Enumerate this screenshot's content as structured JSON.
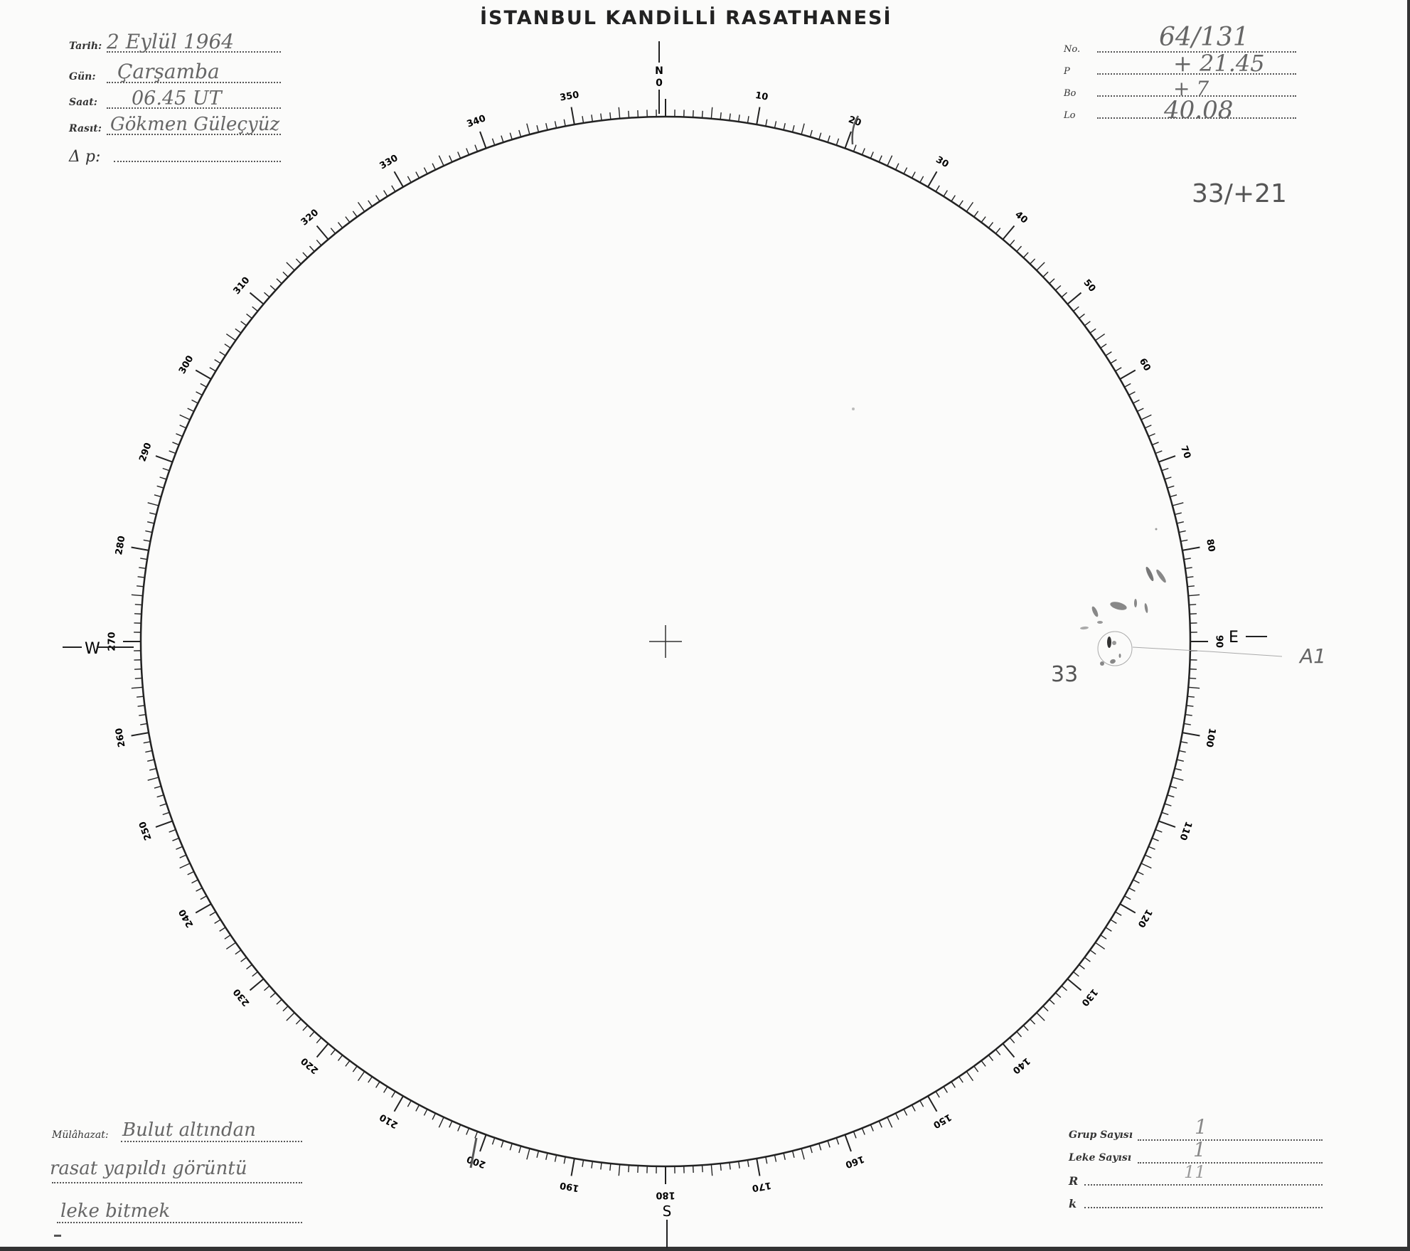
{
  "title": "İSTANBUL KANDİLLİ RASATHANESİ",
  "header_left": [
    {
      "label": "Tarih:",
      "value": "2 Eylül 1964"
    },
    {
      "label": "Gün:",
      "value": "Çarşamba"
    },
    {
      "label": "Saat:",
      "value": "06.45 UT"
    },
    {
      "label": "Rasıt:",
      "value": "Gökmen Güleçyüz"
    },
    {
      "label": "Δ p:",
      "value": ""
    }
  ],
  "header_right": [
    {
      "label": "No.",
      "value": "64/131"
    },
    {
      "label": "P",
      "value": "+ 21.45"
    },
    {
      "label": "Bo",
      "value": "+ 7"
    },
    {
      "label": "Lo",
      "value": "40.08"
    }
  ],
  "note_top_right": "33/+21",
  "dial": {
    "labels": [
      "0",
      "10",
      "20",
      "30",
      "40",
      "50",
      "60",
      "70",
      "80",
      "90",
      "100",
      "110",
      "120",
      "130",
      "140",
      "150",
      "160",
      "170",
      "180",
      "190",
      "200",
      "210",
      "220",
      "230",
      "240",
      "250",
      "260",
      "270",
      "280",
      "290",
      "300",
      "310",
      "320",
      "330",
      "340",
      "350"
    ],
    "north": "N",
    "north_zero": "0",
    "east": "E",
    "south": "S",
    "west": "W"
  },
  "sunspot_group": {
    "number": "33",
    "class": "A1"
  },
  "remarks": {
    "label": "Mülâhazat:",
    "lines": [
      "Bulut altından",
      "rasat yapıldı görüntü",
      "leke bitmek"
    ]
  },
  "footer_right": [
    {
      "label": "Grup Sayısı",
      "value": "1"
    },
    {
      "label": "Leke Sayısı",
      "value": "1"
    },
    {
      "label": "R",
      "value": "11"
    },
    {
      "label": "k",
      "value": ""
    }
  ],
  "colors": {
    "ink": "#222222",
    "pencil": "#666666",
    "paper": "#fbfbfa"
  }
}
